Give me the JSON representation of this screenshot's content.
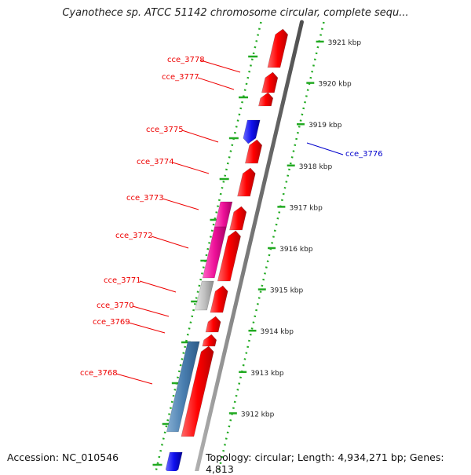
{
  "title": "Cyanothece sp. ATCC 51142 chromosome circular, complete sequ...",
  "footer": {
    "accession": "Accession: NC_010546",
    "topology": "Topology: circular; Length: 4,934,271 bp; Genes: 4,813"
  },
  "scale_ticks": [
    "3921 kbp",
    "3920 kbp",
    "3919 kbp",
    "3918 kbp",
    "3917 kbp",
    "3916 kbp",
    "3915 kbp",
    "3914 kbp",
    "3913 kbp",
    "3912 kbp"
  ],
  "gene_labels": [
    {
      "text": "cce_3778",
      "color": "#ee0000"
    },
    {
      "text": "cce_3777",
      "color": "#ee0000"
    },
    {
      "text": "cce_3776",
      "color": "#0000cc"
    },
    {
      "text": "cce_3775",
      "color": "#ee0000"
    },
    {
      "text": "cce_3774",
      "color": "#ee0000"
    },
    {
      "text": "cce_3773",
      "color": "#ee0000"
    },
    {
      "text": "cce_3772",
      "color": "#ee0000"
    },
    {
      "text": "cce_3771",
      "color": "#ee0000"
    },
    {
      "text": "cce_3770",
      "color": "#ee0000"
    },
    {
      "text": "cce_3769",
      "color": "#ee0000"
    },
    {
      "text": "cce_3768",
      "color": "#ee0000"
    }
  ],
  "colors": {
    "forward_gene": "#ee0000",
    "reverse_gene": "#1010ee",
    "rna_feature": "#ee1199",
    "pseudo_feature": "#bbbbbb",
    "cds_feature": "#4a7fb0",
    "tick_green": "#22aa22",
    "backbone": "#808080"
  }
}
